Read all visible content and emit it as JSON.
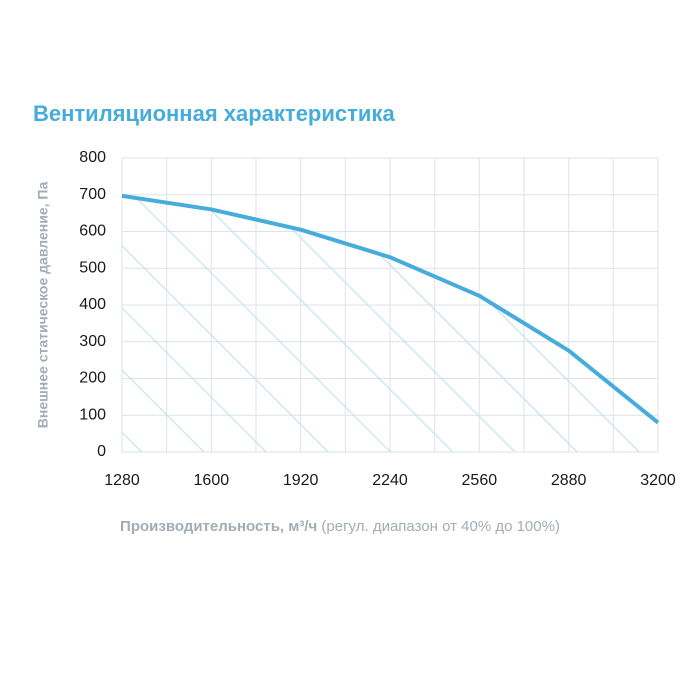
{
  "chart_data": {
    "type": "line",
    "title": "Вентиляционная характеристика",
    "ylabel": "Внешнее статическое давление, Па",
    "xlabel": "Производительность, м³/ч",
    "xlabel_note": "(регул. диапазон от 40% до 100%)",
    "x": [
      1280,
      1600,
      1920,
      2240,
      2560,
      2880,
      3200
    ],
    "series": [
      {
        "values": [
          697,
          660,
          605,
          530,
          425,
          276,
          80
        ],
        "color": "#45acdc"
      }
    ],
    "area_fill": "hatched",
    "area_color": "#b9e0ee",
    "xlim": [
      1280,
      3200
    ],
    "xticks": [
      1280,
      1600,
      1920,
      2240,
      2560,
      2880,
      3200
    ],
    "ylim": [
      0,
      800
    ],
    "yticks": [
      0,
      100,
      200,
      300,
      400,
      500,
      600,
      700,
      800
    ],
    "grid": true
  }
}
